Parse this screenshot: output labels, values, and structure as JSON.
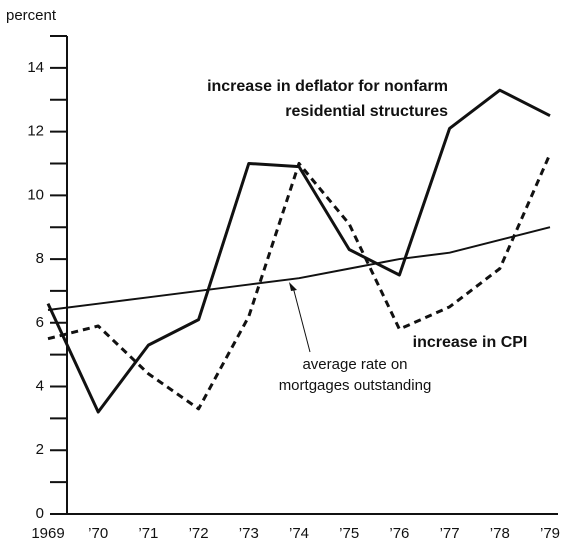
{
  "chart_data": {
    "type": "line",
    "y_label": "percent",
    "categories": [
      "1969",
      "’70",
      "’71",
      "’72",
      "’73",
      "’74",
      "’75",
      "’76",
      "’77",
      "’78",
      "’79"
    ],
    "ylim": [
      0,
      15
    ],
    "yticks": [
      0,
      2,
      4,
      6,
      8,
      10,
      12,
      14
    ],
    "yminorticks": [
      1,
      3,
      5,
      7,
      9,
      11,
      13,
      15
    ],
    "series": [
      {
        "label": [
          "increase in deflator for nonfarm",
          "residential structures"
        ],
        "color": "#111111",
        "style": "solid",
        "width": 3,
        "values": [
          6.6,
          3.2,
          5.3,
          6.1,
          11.0,
          10.9,
          8.3,
          7.5,
          12.1,
          13.3,
          12.5
        ]
      },
      {
        "label": [
          "increase in CPI"
        ],
        "color": "#111111",
        "style": "dashed",
        "width": 3,
        "values": [
          5.5,
          5.9,
          4.4,
          3.3,
          6.2,
          11.0,
          9.1,
          5.8,
          6.5,
          7.7,
          11.3
        ]
      },
      {
        "label": [
          "average rate on",
          "mortgages outstanding"
        ],
        "color": "#111111",
        "style": "solid",
        "width": 2,
        "values": [
          6.4,
          6.6,
          6.8,
          7.0,
          7.2,
          7.4,
          7.7,
          8.0,
          8.2,
          8.6,
          9.0
        ]
      }
    ]
  }
}
